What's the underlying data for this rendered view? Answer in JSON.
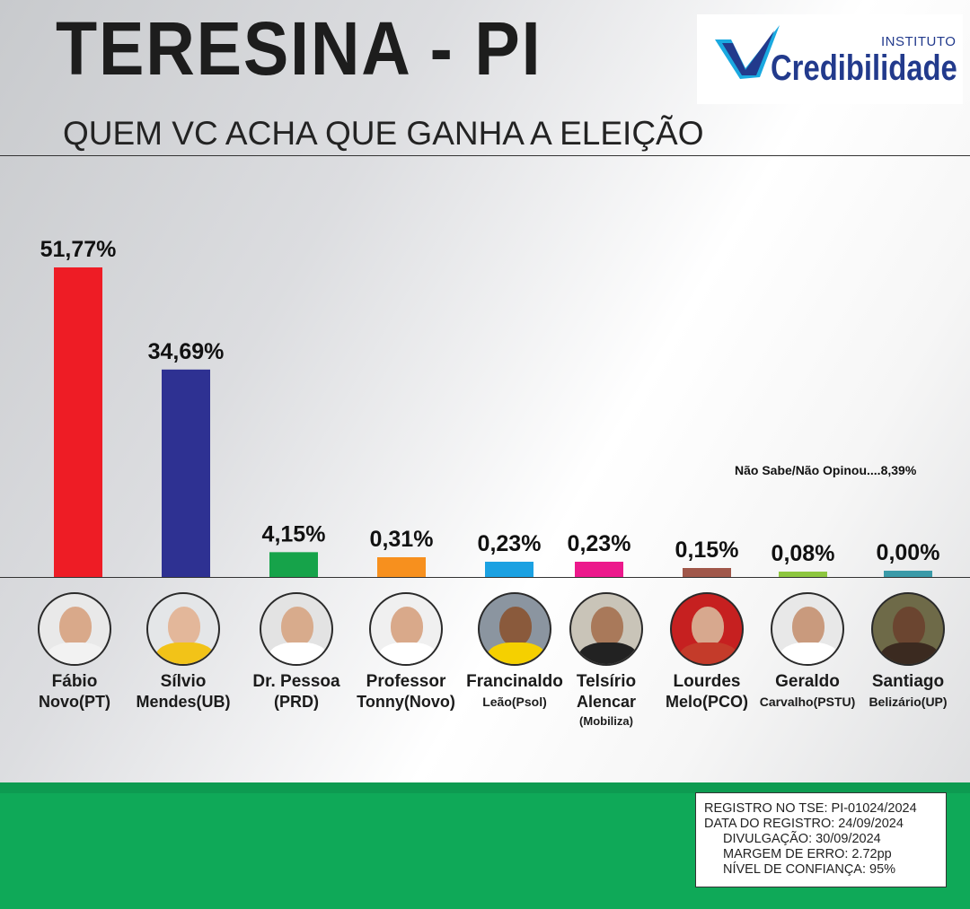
{
  "header": {
    "title": "TERESINA - PI",
    "subtitle": "QUEM VC ACHA QUE GANHA A ELEIÇÃO"
  },
  "logo": {
    "small": "INSTITUTO",
    "big": "Credibilidade",
    "color": "#223a8c"
  },
  "chart_data": {
    "type": "bar",
    "title": "QUEM VC ACHA QUE GANHA A ELEIÇÃO",
    "categories": [
      "Fábio Novo(PT)",
      "Sílvio Mendes(UB)",
      "Dr. Pessoa (PRD)",
      "Professor Tonny(Novo)",
      "Francinaldo Leão(Psol)",
      "Telsírio Alencar (Mobiliza)",
      "Lourdes Melo(PCO)",
      "Geraldo Carvalho(PSTU)",
      "Santiago Belizário(UP)"
    ],
    "values": [
      51.77,
      34.69,
      4.15,
      0.31,
      0.23,
      0.23,
      0.15,
      0.08,
      0.0
    ],
    "labels": [
      "51,77%",
      "34,69%",
      "4,15%",
      "0,31%",
      "0,23%",
      "0,23%",
      "0,15%",
      "0,08%",
      "0,00%"
    ],
    "colors": [
      "#ee1c25",
      "#2e3192",
      "#16a34a",
      "#f7901e",
      "#1ba1e2",
      "#ec198c",
      "#a0574a",
      "#8dc63f",
      "#3a9aa8"
    ],
    "note": "Não Sabe/Não Opinou....8,39%"
  },
  "candidates": [
    {
      "line1": "Fábio",
      "line2": "Novo(PT)",
      "line3": ""
    },
    {
      "line1": "Sílvio",
      "line2": "Mendes(UB)",
      "line3": ""
    },
    {
      "line1": "Dr. Pessoa",
      "line2": "(PRD)",
      "line3": ""
    },
    {
      "line1": "Professor",
      "line2": "Tonny(Novo)",
      "line3": ""
    },
    {
      "line1": "Francinaldo",
      "line2": "Leão(Psol)",
      "line3": ""
    },
    {
      "line1": "Telsírio",
      "line2": "Alencar",
      "line3": "(Mobiliza)"
    },
    {
      "line1": "Lourdes",
      "line2": "Melo(PCO)",
      "line3": ""
    },
    {
      "line1": "Geraldo",
      "line2": "Carvalho(PSTU)",
      "line3": ""
    },
    {
      "line1": "Santiago",
      "line2": "Belizário(UP)",
      "line3": ""
    }
  ],
  "registro": {
    "l1": "REGISTRO NO TSE: PI-01024/2024",
    "l2": "DATA DO REGISTRO: 24/09/2024",
    "l3": "DIVULGAÇÃO: 30/09/2024",
    "l4": "MARGEM DE ERRO: 2.72pp",
    "l5": "NÍVEL DE CONFIANÇA: 95%"
  }
}
